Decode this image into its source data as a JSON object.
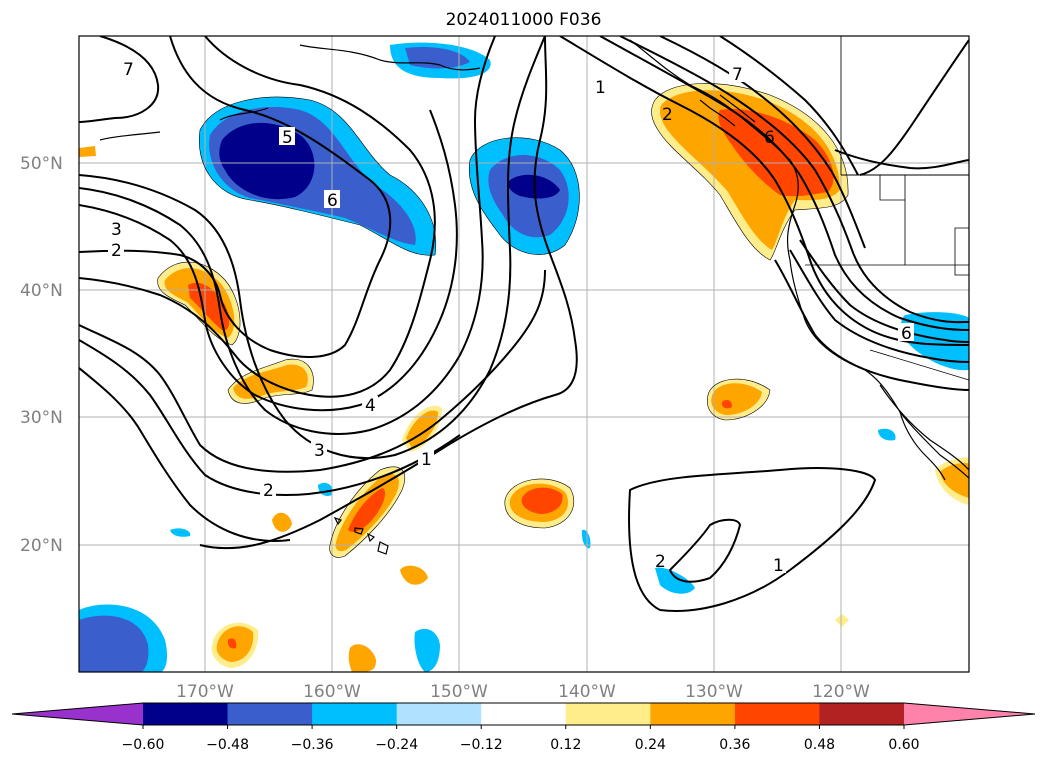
{
  "title": "2024011000 F036",
  "map": {
    "lat_labels": [
      "50°N",
      "40°N",
      "30°N",
      "20°N"
    ],
    "lon_labels": [
      "170°W",
      "160°W",
      "150°W",
      "140°W",
      "130°W",
      "120°W"
    ],
    "gridlines": true
  },
  "contour_labels": [
    "7",
    "5",
    "6",
    "3",
    "2",
    "4",
    "3",
    "2",
    "1",
    "1",
    "7",
    "2",
    "6",
    "6",
    "2",
    "1"
  ],
  "colorbar": {
    "ticks": [
      "−0.60",
      "−0.48",
      "−0.36",
      "−0.24",
      "−0.12",
      "0.12",
      "0.24",
      "0.36",
      "0.48",
      "0.60"
    ],
    "colors": [
      "#9932cc",
      "#00008b",
      "#3a5fcd",
      "#00bfff",
      "#b0e2ff",
      "#ffffff",
      "#ffec8b",
      "#ffa500",
      "#ff4500",
      "#b22222",
      "#ff82ab"
    ],
    "extend": "both"
  }
}
